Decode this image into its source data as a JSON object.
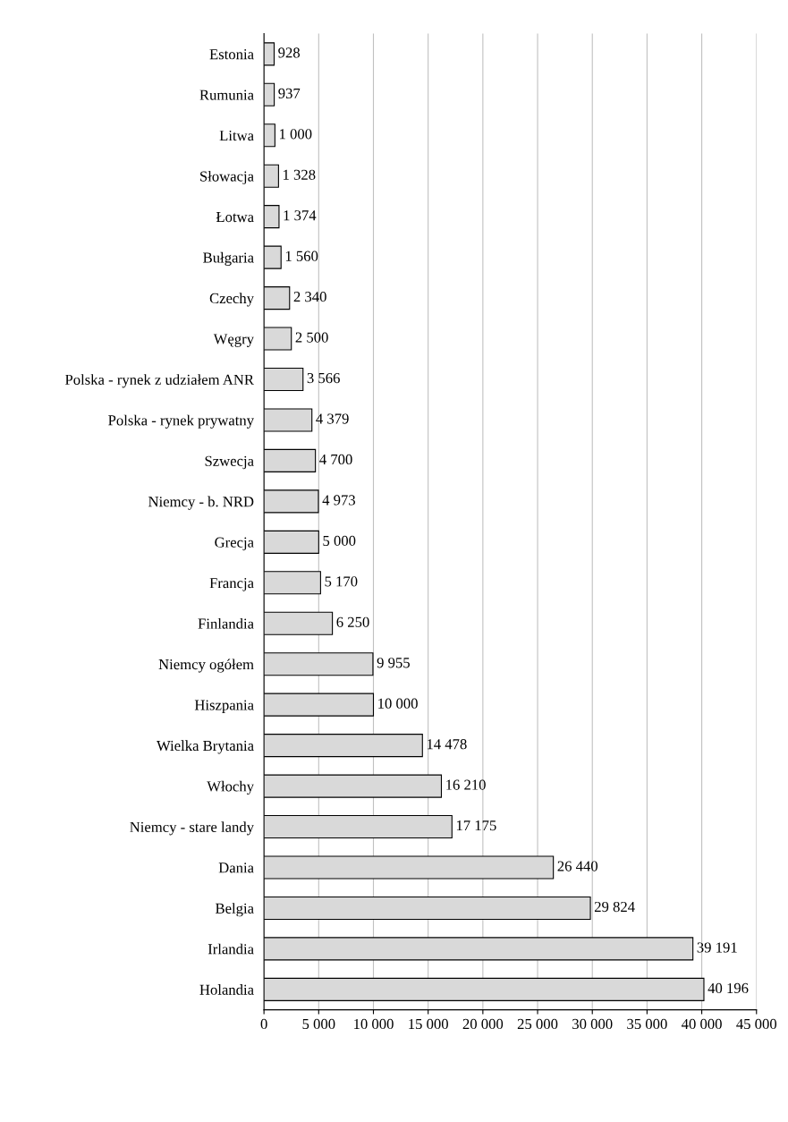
{
  "chart_data": {
    "type": "bar",
    "orientation": "horizontal",
    "categories": [
      "Estonia",
      "Rumunia",
      "Litwa",
      "Słowacja",
      "Łotwa",
      "Bułgaria",
      "Czechy",
      "Węgry",
      "Polska - rynek z udziałem ANR",
      "Polska - rynek prywatny",
      "Szwecja",
      "Niemcy - b. NRD",
      "Grecja",
      "Francja",
      "Finlandia",
      "Niemcy ogółem",
      "Hiszpania",
      "Wielka Brytania",
      "Włochy",
      "Niemcy - stare landy",
      "Dania",
      "Belgia",
      "Irlandia",
      "Holandia"
    ],
    "values": [
      928,
      937,
      1000,
      1328,
      1374,
      1560,
      2340,
      2500,
      3566,
      4379,
      4700,
      4973,
      5000,
      5170,
      6250,
      9955,
      10000,
      14478,
      16210,
      17175,
      26440,
      29824,
      39191,
      40196
    ],
    "value_labels": [
      "928",
      "937",
      "1 000",
      "1 328",
      "1 374",
      "1 560",
      "2 340",
      "2 500",
      "3 566",
      "4 379",
      "4 700",
      "4 973",
      "5 000",
      "5 170",
      "6 250",
      "9 955",
      "10 000",
      "14 478",
      "16 210",
      "17 175",
      "26 440",
      "29 824",
      "39 191",
      "40 196"
    ],
    "color": "#d9d9d9",
    "xlim": [
      0,
      45000
    ],
    "xticks": [
      0,
      {
        "value": 5000,
        "label": "5 000"
      },
      {
        "value": 10000,
        "label": "10 000"
      },
      {
        "value": 15000,
        "label": "15 000"
      },
      {
        "value": 20000,
        "label": "20 000"
      },
      {
        "value": 25000,
        "label": "25 000"
      },
      {
        "value": 30000,
        "label": "30 000"
      },
      {
        "value": 35000,
        "label": "35 000"
      },
      {
        "value": 40000,
        "label": "40 000"
      },
      {
        "value": 45000,
        "label": "45 000"
      }
    ],
    "grid": "x"
  }
}
